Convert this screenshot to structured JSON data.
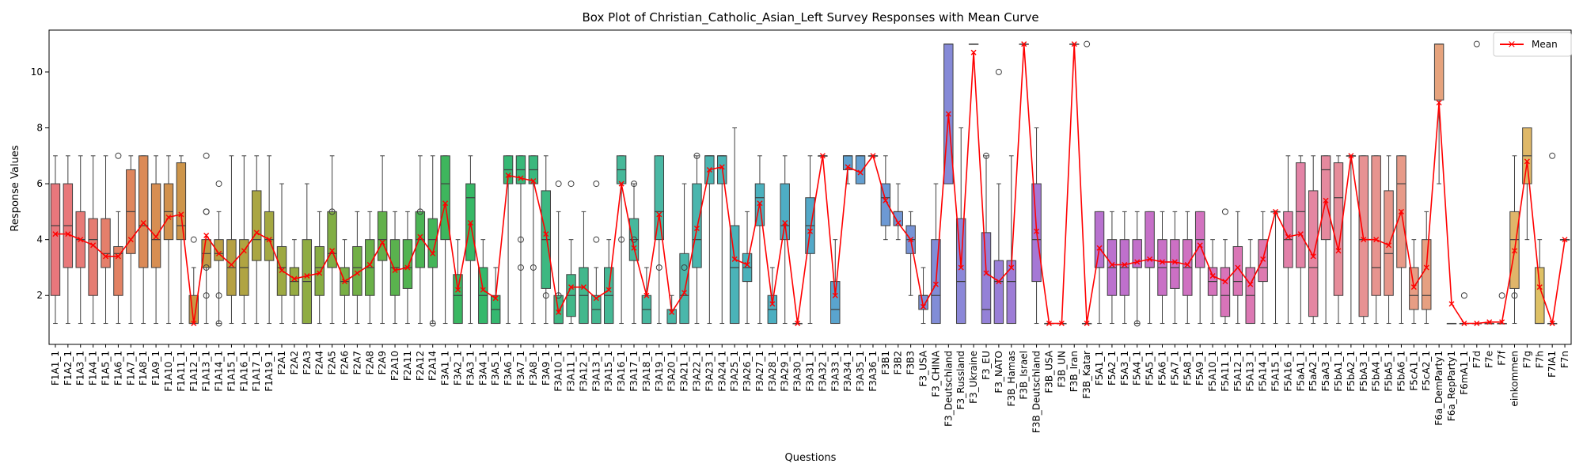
{
  "chart_data": {
    "type": "box",
    "title": "Box Plot of Christian_Catholic_Asian_Left Survey Responses with Mean Curve",
    "xlabel": "Questions",
    "ylabel": "Response Values",
    "ylim": [
      0.25,
      11.5
    ],
    "yticks": [
      2,
      4,
      6,
      8,
      10
    ],
    "legend": {
      "position": "top-right",
      "entries": [
        "Mean"
      ]
    },
    "mean_color": "#ff0000",
    "categories": [
      "F1A1_1",
      "F1A2_1",
      "F1A3_1",
      "F1A4_1",
      "F1A5_1",
      "F1A6_1",
      "F1A7_1",
      "F1A8_1",
      "F1A9_1",
      "F1A10_1",
      "F1A11_1",
      "F1A12_1",
      "F1A13_1",
      "F1A14_1",
      "F1A15_1",
      "F1A16_1",
      "F1A17_1",
      "F1A19_1",
      "F2A1",
      "F2A2",
      "F2A3",
      "F2A4",
      "F2A5",
      "F2A6",
      "F2A7",
      "F2A8",
      "F2A9",
      "F2A10",
      "F2A11",
      "F2A12",
      "F2A14",
      "F3A1_1",
      "F3A2_1",
      "F3A3_1",
      "F3A4_1",
      "F3A5_1",
      "F3A6_1",
      "F3A7_1",
      "F3A8_1",
      "F3A9_1",
      "F3A10_1",
      "F3A11_1",
      "F3A12_1",
      "F3A13_1",
      "F3A15_1",
      "F3A16_1",
      "F3A17_1",
      "F3A18_1",
      "F3A19_1",
      "F3A20_1",
      "F3A21_1",
      "F3A22_1",
      "F3A23_1",
      "F3A24_1",
      "F3A25_1",
      "F3A26_1",
      "F3A27_1",
      "F3A28_1",
      "F3A29_1",
      "F3A30_1",
      "F3A31_1",
      "F3A32_1",
      "F3A33_1",
      "F3A34_1",
      "F3A35_1",
      "F3A36_1",
      "F3B1",
      "F3B2",
      "F3B3",
      "F3_USA",
      "F3_CHINA",
      "F3_Deutschland",
      "F3_Russland",
      "F3_Ukraine",
      "F3_EU",
      "F3_NATO",
      "F3B_Hamas",
      "F3B_Israel",
      "F3B_Deutschland",
      "F3B_USA",
      "F3B_UN",
      "F3B_Iran",
      "F3B_Katar",
      "F5A1_1",
      "F5A2_1",
      "F5A3_1",
      "F5A4_1",
      "F5A5_1",
      "F5A6_1",
      "F5A7_1",
      "F5A8_1",
      "F5A9_1",
      "F5A10_1",
      "F5A11_1",
      "F5A12_1",
      "F5A13_1",
      "F5A14_1",
      "F5A15_1",
      "F5A16_1",
      "F5aA1_1",
      "F5aA2_1",
      "F5aA3_1",
      "F5bA1_1",
      "F5bA2_1",
      "F5bA3_1",
      "F5bA4_1",
      "F5bA5_1",
      "F5bA6_1",
      "F5cA1_1",
      "F5cA2_1",
      "F6a_DemParty1",
      "F6a_RepParty1",
      "F6mA1_1",
      "F7d",
      "F7e",
      "F7f",
      "einkommen",
      "F7g",
      "F7h",
      "F7IA1",
      "F7n"
    ],
    "boxes": [
      [
        1,
        2,
        4.5,
        6,
        7
      ],
      [
        1,
        3,
        4.5,
        6,
        7
      ],
      [
        1,
        3,
        4,
        5,
        7
      ],
      [
        1,
        2,
        4,
        4.75,
        7
      ],
      [
        1,
        3,
        3.5,
        4.75,
        7
      ],
      [
        1,
        2,
        3.5,
        3.75,
        5
      ],
      [
        1,
        3.5,
        5,
        6.5,
        7
      ],
      [
        1,
        3,
        4.5,
        7,
        7
      ],
      [
        1,
        3,
        4,
        6,
        7
      ],
      [
        1,
        4,
        5,
        6,
        7
      ],
      [
        1,
        4,
        4.5,
        6.75,
        7
      ],
      [
        1,
        1,
        1,
        2,
        3
      ],
      [
        1,
        3,
        3.5,
        4,
        4
      ],
      [
        1,
        3.25,
        3.5,
        4,
        5
      ],
      [
        1,
        2,
        3,
        4,
        7
      ],
      [
        1,
        2,
        3,
        4,
        7
      ],
      [
        1,
        3.25,
        4,
        5.75,
        7
      ],
      [
        1,
        3.25,
        4,
        5,
        7
      ],
      [
        1,
        2,
        3,
        3.75,
        6
      ],
      [
        1,
        2,
        2.5,
        3,
        4
      ],
      [
        1,
        1,
        2.5,
        4,
        6
      ],
      [
        1,
        2,
        3,
        3.75,
        5
      ],
      [
        1,
        3,
        3.5,
        5,
        7
      ],
      [
        1,
        2,
        2.5,
        3,
        4
      ],
      [
        1,
        2,
        3,
        3.75,
        5
      ],
      [
        1,
        2,
        3,
        4,
        5
      ],
      [
        1,
        3.25,
        4,
        5,
        7
      ],
      [
        1,
        2,
        3,
        4,
        5
      ],
      [
        1,
        2.25,
        3,
        4,
        5
      ],
      [
        1,
        3,
        4,
        5,
        7
      ],
      [
        1,
        3,
        4,
        4.75,
        7
      ],
      [
        1,
        4,
        6,
        7,
        7
      ],
      [
        1,
        1,
        2,
        2.75,
        4
      ],
      [
        1,
        3.25,
        5.5,
        6,
        7
      ],
      [
        1,
        1,
        2,
        3,
        4
      ],
      [
        1,
        1,
        1.5,
        2,
        3
      ],
      [
        1,
        6,
        6.5,
        7,
        7
      ],
      [
        1,
        6,
        6.5,
        7,
        7
      ],
      [
        1,
        6,
        6.5,
        7,
        7
      ],
      [
        1,
        2.25,
        4,
        5.75,
        7
      ],
      [
        1,
        1,
        1,
        2,
        5
      ],
      [
        1,
        1.25,
        2,
        2.75,
        4
      ],
      [
        1,
        1,
        2,
        3,
        5
      ],
      [
        1,
        1,
        1.5,
        2,
        3
      ],
      [
        1,
        1,
        2,
        3,
        4
      ],
      [
        1,
        6,
        6.5,
        7,
        7
      ],
      [
        1,
        3.25,
        4,
        4.75,
        6
      ],
      [
        1,
        1,
        1.5,
        2,
        3
      ],
      [
        1,
        4,
        5,
        7,
        7
      ],
      [
        1,
        1,
        1,
        1.5,
        2
      ],
      [
        1,
        1,
        2,
        3.5,
        6
      ],
      [
        1,
        3,
        4,
        6,
        7
      ],
      [
        1,
        6,
        7,
        7,
        7
      ],
      [
        1,
        6,
        7,
        7,
        7
      ],
      [
        1,
        1,
        3,
        4.5,
        8
      ],
      [
        1,
        2.5,
        3,
        3.5,
        5
      ],
      [
        1,
        4.5,
        5.5,
        6,
        7
      ],
      [
        1,
        1,
        1.5,
        2,
        3
      ],
      [
        1,
        4,
        4.5,
        6,
        7
      ],
      [
        1,
        1,
        1,
        1,
        1
      ],
      [
        1,
        3.5,
        4.5,
        5.5,
        7
      ],
      [
        7,
        7,
        7,
        7,
        7
      ],
      [
        1,
        1,
        1.5,
        2.5,
        4
      ],
      [
        6,
        6.5,
        7,
        7,
        7
      ],
      [
        6,
        6,
        7,
        7,
        7
      ],
      [
        7,
        7,
        7,
        7,
        7
      ],
      [
        4,
        4.5,
        5.5,
        6,
        7
      ],
      [
        4,
        4.5,
        5,
        5,
        6
      ],
      [
        2,
        3.5,
        4,
        4.5,
        5
      ],
      [
        1,
        1.5,
        2,
        2,
        3
      ],
      [
        1,
        1,
        2,
        4,
        6
      ],
      [
        6,
        6,
        11,
        11,
        11
      ],
      [
        1,
        1,
        2.5,
        4.75,
        8
      ],
      [
        11,
        11,
        11,
        11,
        11
      ],
      [
        1,
        1,
        1.5,
        4.25,
        7
      ],
      [
        1,
        1,
        2.5,
        3.25,
        6
      ],
      [
        1,
        1,
        2.5,
        3.25,
        7
      ],
      [
        11,
        11,
        11,
        11,
        11
      ],
      [
        1,
        2.5,
        4,
        6,
        8
      ],
      [
        1,
        1,
        1,
        1,
        1
      ],
      [
        1,
        1,
        1,
        1,
        1
      ],
      [
        11,
        11,
        11,
        11,
        11
      ],
      [
        1,
        1,
        1,
        1,
        1
      ],
      [
        1,
        3,
        3,
        5,
        5
      ],
      [
        1,
        2,
        3,
        4,
        5
      ],
      [
        1,
        2,
        3,
        4,
        5
      ],
      [
        1,
        3,
        3,
        4,
        5
      ],
      [
        1,
        3,
        3,
        5,
        5
      ],
      [
        1,
        2,
        3,
        4,
        5
      ],
      [
        1,
        2.25,
        3,
        4,
        5
      ],
      [
        1,
        2,
        3,
        4,
        5
      ],
      [
        1,
        3,
        4,
        5,
        5
      ],
      [
        1,
        2,
        2.5,
        3,
        4
      ],
      [
        1,
        1.25,
        2,
        3,
        4
      ],
      [
        1,
        2,
        2.5,
        3.75,
        5
      ],
      [
        1,
        1,
        2,
        3,
        4
      ],
      [
        1,
        2.5,
        3,
        4,
        5
      ],
      [
        1,
        5,
        5,
        5,
        5
      ],
      [
        1,
        3,
        4,
        5,
        7
      ],
      [
        1,
        3,
        5,
        6.75,
        7
      ],
      [
        1,
        1.25,
        3,
        5.75,
        7
      ],
      [
        1,
        4,
        6.5,
        7,
        7
      ],
      [
        1,
        2,
        5.5,
        6.75,
        7
      ],
      [
        1,
        7,
        7,
        7,
        7
      ],
      [
        1,
        1.25,
        4,
        7,
        7
      ],
      [
        1,
        2,
        3,
        7,
        7
      ],
      [
        1,
        2,
        3.5,
        5.75,
        7
      ],
      [
        1,
        3,
        6,
        7,
        7
      ],
      [
        1,
        1.5,
        2,
        3,
        4
      ],
      [
        1,
        1.5,
        2,
        4,
        5
      ],
      [
        6,
        9,
        11,
        11,
        11
      ],
      [
        1,
        1,
        1,
        1,
        1
      ],
      [
        1,
        1,
        1,
        1,
        1
      ],
      [
        1,
        1,
        1,
        1,
        1
      ],
      [
        1,
        1,
        1,
        1,
        1
      ],
      [
        1,
        1,
        1,
        1,
        1
      ],
      [
        1,
        2.25,
        4,
        5,
        7
      ],
      [
        4,
        6,
        7,
        8,
        8
      ],
      [
        1,
        1,
        1,
        3,
        4
      ],
      [
        1,
        1,
        1,
        1,
        1
      ],
      [
        4,
        4,
        4,
        4,
        4
      ]
    ],
    "means": [
      4.2,
      4.2,
      4.0,
      3.8,
      3.4,
      3.4,
      4.0,
      4.6,
      4.1,
      4.8,
      4.9,
      1.0,
      4.15,
      3.5,
      3.1,
      3.6,
      4.25,
      4.0,
      2.9,
      2.6,
      2.7,
      2.8,
      3.6,
      2.5,
      2.8,
      3.1,
      3.9,
      2.9,
      3.0,
      4.1,
      3.5,
      5.3,
      2.2,
      4.6,
      2.2,
      1.9,
      6.3,
      6.2,
      6.1,
      4.2,
      1.4,
      2.3,
      2.3,
      1.9,
      2.2,
      6.0,
      3.7,
      2.0,
      4.9,
      1.4,
      2.1,
      4.4,
      6.5,
      6.6,
      3.3,
      3.1,
      5.3,
      1.7,
      4.6,
      1.0,
      4.3,
      7.0,
      2.0,
      6.6,
      6.4,
      7.0,
      5.4,
      4.6,
      4.0,
      1.6,
      2.4,
      8.5,
      3.0,
      10.7,
      2.8,
      2.5,
      3.0,
      11.0,
      4.3,
      1.0,
      1.0,
      11.0,
      1.0,
      3.7,
      3.1,
      3.1,
      3.2,
      3.3,
      3.2,
      3.2,
      3.1,
      3.8,
      2.7,
      2.5,
      3.0,
      2.4,
      3.3,
      5.0,
      4.1,
      4.2,
      3.4,
      5.4,
      3.6,
      7.0,
      4.0,
      4.0,
      3.8,
      5.0,
      2.3,
      3.0,
      8.9,
      1.7,
      1.0,
      1.0,
      1.05,
      1.05,
      3.6,
      6.8,
      2.3,
      1.0,
      4.0
    ],
    "outliers": {
      "5": [
        7
      ],
      "11": [
        4
      ],
      "12": [
        7,
        5,
        5,
        3,
        2
      ],
      "13": [
        6,
        2,
        1
      ],
      "22": [
        5
      ],
      "29": [
        5
      ],
      "30": [
        1
      ],
      "37": [
        3,
        4
      ],
      "38": [
        3
      ],
      "39": [
        2
      ],
      "40": [
        6,
        2
      ],
      "41": [
        6
      ],
      "43": [
        6,
        4
      ],
      "45": [
        4
      ],
      "46": [
        6,
        4
      ],
      "48": [
        3
      ],
      "50": [
        3
      ],
      "51": [
        7
      ],
      "74": [
        7
      ],
      "75": [
        10
      ],
      "82": [
        11
      ],
      "86": [
        1
      ],
      "93": [
        5
      ],
      "112": [
        2
      ],
      "113": [
        11
      ],
      "115": [
        2
      ],
      "116": [
        2
      ],
      "119": [
        7
      ]
    },
    "colors": [
      "#e8777c",
      "#e8787a",
      "#e77a77",
      "#e57c72",
      "#e47f6b",
      "#e28264",
      "#df865d",
      "#db8a57",
      "#d78e52",
      "#d2924e",
      "#cd954a",
      "#c79947",
      "#c19c45",
      "#bc9f44",
      "#b6a143",
      "#b0a442",
      "#aaa642",
      "#a4a842",
      "#9da942",
      "#96ab42",
      "#8fac42",
      "#88ad43",
      "#81ae44",
      "#79af45",
      "#72b046",
      "#6ab148",
      "#62b14b",
      "#5ab24e",
      "#52b351",
      "#4bb455",
      "#44b559",
      "#3eb65d",
      "#3ab762",
      "#37b866",
      "#35b86b",
      "#35b870",
      "#36b874",
      "#38b879",
      "#3ab87d",
      "#3db881",
      "#3fb885",
      "#41b889",
      "#43b88d",
      "#44b891",
      "#45b895",
      "#46b899",
      "#47b89c",
      "#48b8a0",
      "#49b8a4",
      "#49b7a7",
      "#4ab7ab",
      "#4ab6ae",
      "#4ab5b2",
      "#4ab4b5",
      "#4ab3b8",
      "#4ab2bb",
      "#4bb1be",
      "#4cafc1",
      "#4eadc4",
      "#50abc7",
      "#53a9c9",
      "#56a6cc",
      "#5aa4ce",
      "#5ea1d0",
      "#639fd1",
      "#689cd3",
      "#6d99d4",
      "#7296d5",
      "#7793d6",
      "#7c90d7",
      "#818dd7",
      "#868ad7",
      "#8b87d8",
      "#9084d7",
      "#9481d7",
      "#997fd7",
      "#9d7cd6",
      "#a17ad6",
      "#a578d5",
      "#a977d4",
      "#ad75d3",
      "#b174d2",
      "#b473d1",
      "#b872cf",
      "#bb71ce",
      "#bf70cc",
      "#c270ca",
      "#c670c8",
      "#c970c6",
      "#cc70c4",
      "#cf71c1",
      "#d272bf",
      "#d573bc",
      "#d874b9",
      "#da76b6",
      "#dc78b3",
      "#de7ab0",
      "#e07dac",
      "#e280a9",
      "#e383a6",
      "#e486a2",
      "#e5899e",
      "#e68c9a",
      "#e78f97",
      "#e79293",
      "#e7948f",
      "#e7978b",
      "#e79a88",
      "#e79d84",
      "#e6a081",
      "#e6a37d",
      "#e5a67a",
      "#e4a976",
      "#e3ac73",
      "#e2af70",
      "#e1b26d",
      "#e0b56a",
      "#dfb868",
      "#dec166",
      "#ddc464"
    ]
  }
}
